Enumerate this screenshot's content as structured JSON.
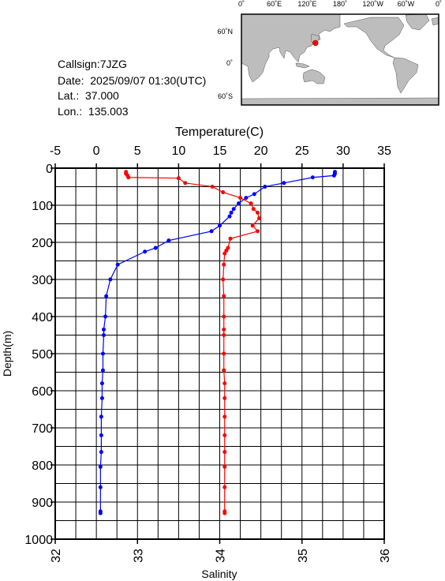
{
  "info": {
    "callsign": "Callsign:7JZG",
    "date": "Date:  2025/09/07 01:30(UTC)",
    "lat": "Lat.:  37.000",
    "lon": "Lon.:  135.003"
  },
  "map": {
    "lon_labels": [
      "0˚",
      "60˚E",
      "120˚E",
      "180˚",
      "120˚W",
      "60˚W",
      "0˚"
    ],
    "lat_labels": [
      "60˚N",
      "0˚",
      "60˚S"
    ]
  },
  "chart_data": {
    "type": "line",
    "xlabel": "Temperature(C)",
    "x2label": "Salinity",
    "ylabel": "Depth(m)",
    "xlim": [
      -5,
      35
    ],
    "xticks": [
      -5,
      0,
      5,
      10,
      15,
      20,
      25,
      30,
      35
    ],
    "x2lim": [
      32,
      36
    ],
    "x2ticks": [
      32,
      33,
      34,
      35,
      36
    ],
    "ylim": [
      0,
      1000
    ],
    "yticks": [
      0,
      100,
      200,
      300,
      400,
      500,
      600,
      700,
      800,
      900,
      1000
    ],
    "xgrid": [
      -2.5,
      0,
      2.5,
      5,
      7.5,
      10,
      12.5,
      15,
      17.5,
      20,
      22.5,
      25,
      27.5,
      30,
      32.5
    ],
    "ygrid": [
      50,
      100,
      150,
      200,
      250,
      300,
      350,
      400,
      450,
      500,
      550,
      600,
      650,
      700,
      750,
      800,
      850,
      900,
      950
    ],
    "series": [
      {
        "color": "#0000ff",
        "axis": "x",
        "depth": [
          10,
          15,
          20,
          25,
          40,
          50,
          70,
          80,
          95,
          110,
          120,
          130,
          155,
          170,
          195,
          215,
          225,
          260,
          300,
          345,
          400,
          435,
          450,
          500,
          545,
          580,
          620,
          670,
          720,
          765,
          805,
          860,
          925,
          930
        ],
        "values": [
          29.0,
          29.0,
          28.9,
          26.3,
          22.8,
          20.5,
          19.2,
          18.2,
          17.3,
          16.7,
          16.4,
          16.2,
          15.0,
          14.0,
          8.8,
          7.2,
          5.9,
          2.6,
          1.7,
          1.2,
          1.1,
          0.9,
          0.9,
          0.8,
          0.8,
          0.7,
          0.7,
          0.6,
          0.6,
          0.6,
          0.5,
          0.5,
          0.5,
          0.5
        ]
      },
      {
        "color": "#ff0000",
        "axis": "x2",
        "depth": [
          10,
          15,
          20,
          25,
          27,
          40,
          50,
          65,
          80,
          95,
          110,
          120,
          135,
          155,
          170,
          190,
          215,
          222,
          230,
          260,
          300,
          345,
          400,
          435,
          450,
          500,
          545,
          580,
          620,
          670,
          720,
          765,
          805,
          860,
          925,
          930
        ],
        "values": [
          32.86,
          32.86,
          32.88,
          32.89,
          33.5,
          33.58,
          33.91,
          34.04,
          34.25,
          34.38,
          34.41,
          34.46,
          34.48,
          34.4,
          34.46,
          34.13,
          34.1,
          34.08,
          34.06,
          34.05,
          34.04,
          34.05,
          34.05,
          34.05,
          34.05,
          34.05,
          34.05,
          34.06,
          34.06,
          34.06,
          34.06,
          34.06,
          34.06,
          34.06,
          34.06,
          34.06
        ]
      }
    ]
  }
}
